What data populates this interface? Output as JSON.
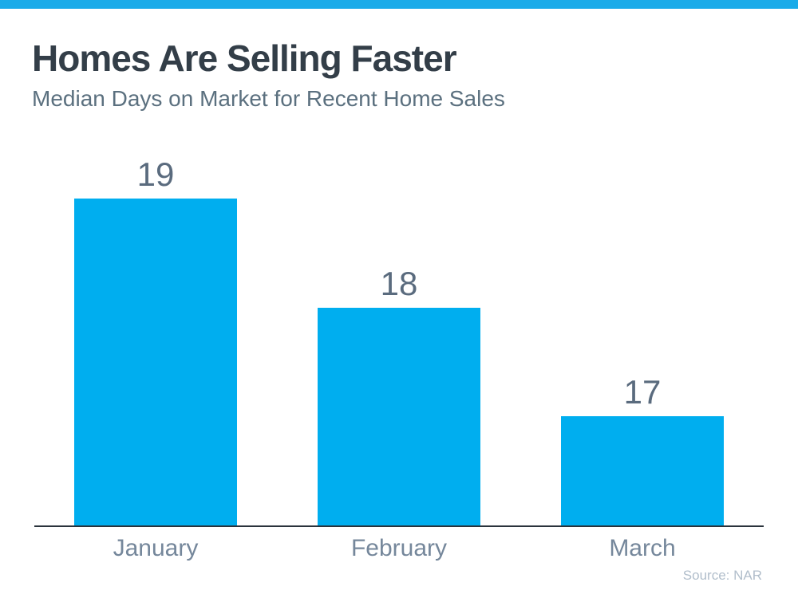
{
  "page": {
    "title": "Homes Are Selling Faster",
    "subtitle": "Median Days on Market for Recent Home Sales",
    "source": "Source: NAR",
    "top_band_color": "#1AABE9",
    "title_color": "#333E48",
    "subtitle_color": "#5B707F",
    "axis_color": "#2A333C"
  },
  "chart_data": {
    "type": "bar",
    "title": "Homes Are Selling Faster",
    "subtitle": "Median Days on Market for Recent Home Sales",
    "categories": [
      "January",
      "February",
      "March"
    ],
    "values": [
      19,
      18,
      17
    ],
    "value_labels": [
      "19",
      "18",
      "17"
    ],
    "xlabel": "",
    "ylabel": "",
    "ylim": [
      16,
      19
    ],
    "baseline": 16,
    "bar_color": "#00AEEF",
    "grid": false,
    "legend": false,
    "annotation": "Source: NAR"
  }
}
